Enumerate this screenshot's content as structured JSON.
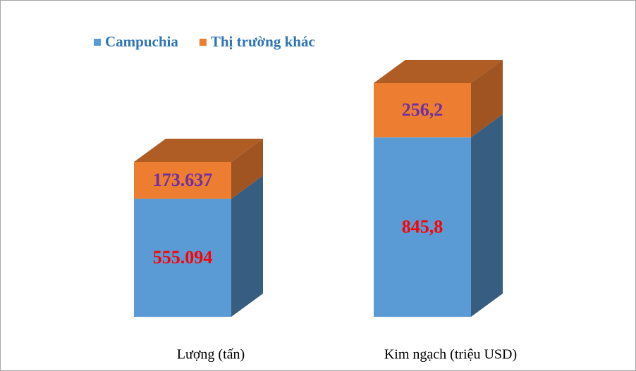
{
  "chart_data": {
    "type": "bar3d-stacked",
    "categories": [
      "Lượng (tấn)",
      "Kim ngạch (triệu USD)"
    ],
    "series": [
      {
        "name": "Campuchia",
        "color": "#5b9bd5",
        "values": [
          555094,
          845.8
        ],
        "value_labels": [
          "555.094",
          "845,8"
        ],
        "label_color": "#ff0000"
      },
      {
        "name": "Thị trường khác",
        "color": "#ed7d31",
        "values": [
          173637,
          256.2
        ],
        "value_labels": [
          "173.637",
          "256,2"
        ],
        "label_color": "#7030a0"
      }
    ]
  }
}
